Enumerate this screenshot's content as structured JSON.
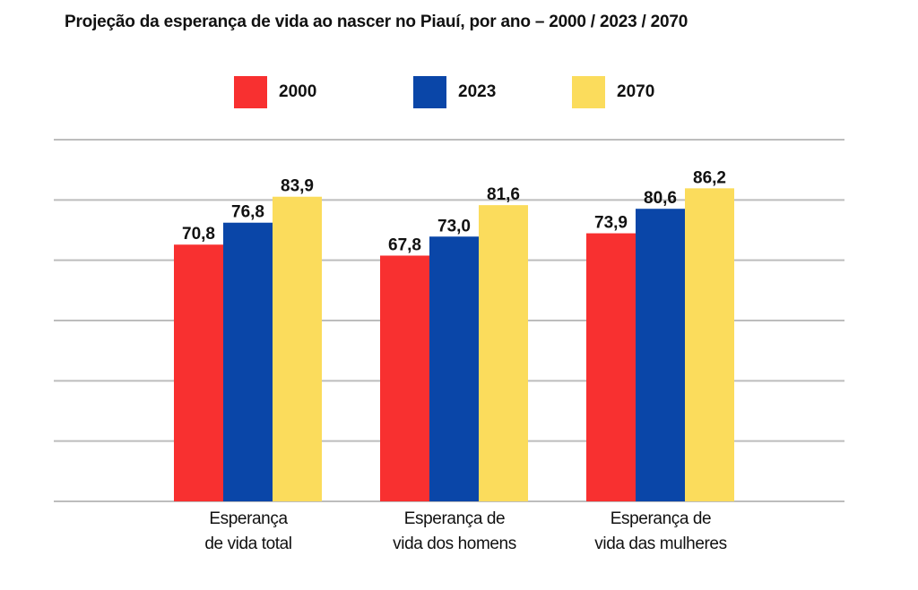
{
  "chart_data": {
    "type": "bar",
    "title": "Projeção da esperança de vida ao nascer no Piauí, por ano – 2000 / 2023 / 2070",
    "xlabel": "",
    "ylabel": "",
    "categories": [
      [
        "Esperança",
        "de vida total"
      ],
      [
        "Esperança de",
        "vida dos homens"
      ],
      [
        "Esperança de",
        "vida das mulheres"
      ]
    ],
    "series": [
      {
        "name": "2000",
        "color": "#f83030",
        "values": [
          70.8,
          67.8,
          73.9
        ],
        "labels": [
          "70,8",
          "67,8",
          "73,9"
        ]
      },
      {
        "name": "2023",
        "color": "#0a46a8",
        "values": [
          76.8,
          73.0,
          80.6
        ],
        "labels": [
          "76,8",
          "73,0",
          "80,6"
        ]
      },
      {
        "name": "2070",
        "color": "#fbdc5c",
        "values": [
          83.9,
          81.6,
          86.2
        ],
        "labels": [
          "83,9",
          "81,6",
          "86,2"
        ]
      }
    ],
    "ylim": [
      0.6,
      99.5
    ],
    "grid": true,
    "gridline_count": 7,
    "legend_position": "top-center",
    "y_tick_labels_visible": false
  }
}
